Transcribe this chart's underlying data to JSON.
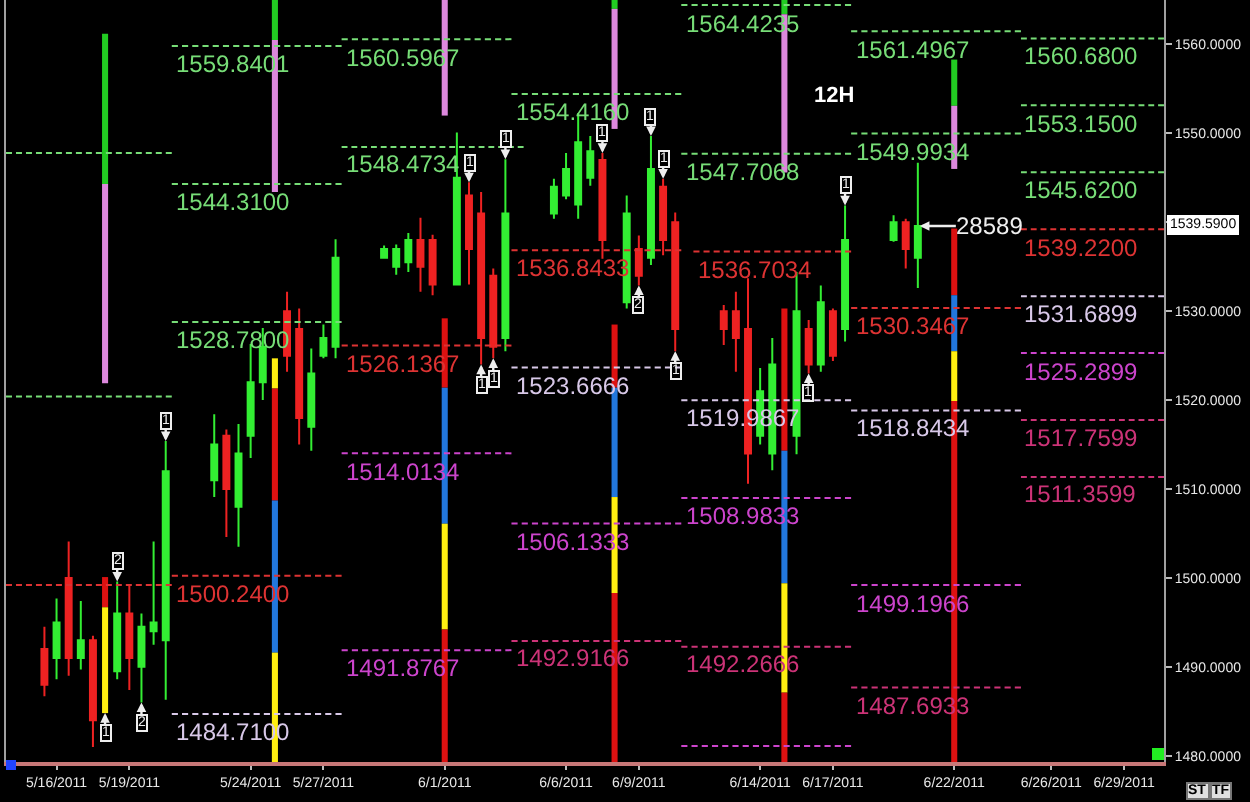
{
  "chart_data": {
    "type": "candlestick",
    "x": [
      "2011-05-15T12:00",
      "2011-05-16T00:00",
      "2011-05-16T12:00",
      "2011-05-17T00:00",
      "2011-05-17T12:00",
      "2011-05-18T12:00",
      "2011-05-19T00:00",
      "2011-05-19T12:00",
      "2011-05-20T00:00",
      "2011-05-20T12:00",
      "2011-05-22T12:00",
      "2011-05-23T00:00",
      "2011-05-23T12:00",
      "2011-05-24T00:00",
      "2011-05-24T12:00",
      "2011-05-25T12:00",
      "2011-05-26T00:00",
      "2011-05-26T12:00",
      "2011-05-27T00:00",
      "2011-05-27T12:00",
      "2011-05-29T12:00",
      "2011-05-30T00:00",
      "2011-05-30T12:00",
      "2011-05-31T00:00",
      "2011-05-31T12:00",
      "2011-06-01T12:00",
      "2011-06-02T00:00",
      "2011-06-02T12:00",
      "2011-06-03T00:00",
      "2011-06-03T12:00",
      "2011-06-05T12:00",
      "2011-06-06T00:00",
      "2011-06-06T12:00",
      "2011-06-07T00:00",
      "2011-06-07T12:00",
      "2011-06-08T12:00",
      "2011-06-09T00:00",
      "2011-06-09T12:00",
      "2011-06-10T00:00",
      "2011-06-10T12:00",
      "2011-06-12T12:00",
      "2011-06-13T00:00",
      "2011-06-13T12:00",
      "2011-06-14T00:00",
      "2011-06-14T12:00",
      "2011-06-15T12:00",
      "2011-06-16T00:00",
      "2011-06-16T12:00",
      "2011-06-17T00:00",
      "2011-06-17T12:00",
      "2011-06-19T12:00",
      "2011-06-20T00:00",
      "2011-06-20T12:00"
    ],
    "ohlc": [
      [
        1492,
        1494.5,
        1486.7,
        1488
      ],
      [
        1491,
        1497.7,
        1488.6,
        1495
      ],
      [
        1500,
        1504.1,
        1489,
        1491
      ],
      [
        1491,
        1497.4,
        1489.7,
        1493
      ],
      [
        1493,
        1493.5,
        1481,
        1484
      ],
      [
        1489.5,
        1499.6,
        1488.6,
        1496
      ],
      [
        1496,
        1499.2,
        1487.4,
        1491
      ],
      [
        1490,
        1496,
        1486,
        1494.5
      ],
      [
        1494,
        1504.1,
        1492.5,
        1495
      ],
      [
        1493,
        1515.4,
        1486.3,
        1512
      ],
      [
        1511,
        1518.4,
        1509.1,
        1515
      ],
      [
        1516,
        1516.7,
        1504.6,
        1510
      ],
      [
        1508,
        1517.3,
        1503.5,
        1514
      ],
      [
        1516,
        1526.3,
        1513.5,
        1522
      ],
      [
        1522,
        1528.1,
        1520,
        1526
      ],
      [
        1530,
        1532.2,
        1523.2,
        1525
      ],
      [
        1528,
        1530.3,
        1515,
        1518
      ],
      [
        1517,
        1525.8,
        1514.3,
        1523
      ],
      [
        1525,
        1528.5,
        1524.7,
        1527
      ],
      [
        1526,
        1538.1,
        1524.7,
        1536
      ],
      [
        1536,
        1537.4,
        1535.9,
        1537
      ],
      [
        1535,
        1537.5,
        1534.1,
        1537
      ],
      [
        1535.5,
        1538.8,
        1534.4,
        1538
      ],
      [
        1538,
        1540.5,
        1532.2,
        1535
      ],
      [
        1538,
        1538.6,
        1531.8,
        1533
      ],
      [
        1533,
        1550.1,
        1532.9,
        1545
      ],
      [
        1543,
        1544.5,
        1533,
        1537
      ],
      [
        1541,
        1543.4,
        1524,
        1527
      ],
      [
        1534,
        1534.8,
        1524.7,
        1526
      ],
      [
        1527,
        1547.1,
        1525.5,
        1541
      ],
      [
        1541,
        1544.9,
        1540.4,
        1544
      ],
      [
        1543,
        1547.8,
        1542.6,
        1546
      ],
      [
        1542,
        1552.3,
        1540.4,
        1549
      ],
      [
        1545,
        1549.7,
        1544.1,
        1548
      ],
      [
        1547,
        1547.8,
        1535.9,
        1538
      ],
      [
        1531,
        1543,
        1530.3,
        1541
      ],
      [
        1537,
        1538.5,
        1532.9,
        1534
      ],
      [
        1536,
        1549.7,
        1535.2,
        1546
      ],
      [
        1544,
        1544.9,
        1536.3,
        1538
      ],
      [
        1540,
        1541.1,
        1525.5,
        1528
      ],
      [
        1530,
        1530.7,
        1526.2,
        1528
      ],
      [
        1530,
        1532.2,
        1523.2,
        1527
      ],
      [
        1528,
        1533.7,
        1510.6,
        1514
      ],
      [
        1516,
        1523.6,
        1515,
        1521
      ],
      [
        1514,
        1527,
        1512.1,
        1524
      ],
      [
        1516,
        1534.4,
        1513.9,
        1530
      ],
      [
        1528,
        1529,
        1523,
        1524
      ],
      [
        1524,
        1532.9,
        1523.2,
        1531
      ],
      [
        1530,
        1530.3,
        1524.4,
        1525
      ],
      [
        1528,
        1541.9,
        1526.6,
        1538
      ],
      [
        1538,
        1540.8,
        1537.8,
        1540
      ],
      [
        1540,
        1540.4,
        1534.8,
        1537
      ],
      [
        1536,
        1546.7,
        1532.6,
        1539.59
      ]
    ],
    "colors": [
      "#ee2222",
      "#33ee33",
      "#ee2222",
      "#33ee33",
      "#ee2222",
      "#33ee33",
      "#ee2222",
      "#33ee33",
      "#33ee33",
      "#33ee33",
      "#33ee33",
      "#ee2222",
      "#33ee33",
      "#33ee33",
      "#33ee33",
      "#ee2222",
      "#ee2222",
      "#33ee33",
      "#33ee33",
      "#33ee33",
      "#33ee33",
      "#33ee33",
      "#33ee33",
      "#ee2222",
      "#ee2222",
      "#33ee33",
      "#ee2222",
      "#ee2222",
      "#ee2222",
      "#33ee33",
      "#33ee33",
      "#33ee33",
      "#33ee33",
      "#33ee33",
      "#ee2222",
      "#33ee33",
      "#ee2222",
      "#33ee33",
      "#ee2222",
      "#ee2222",
      "#ee2222",
      "#ee2222",
      "#ee2222",
      "#33ee33",
      "#33ee33",
      "#33ee33",
      "#ee2222",
      "#33ee33",
      "#ee2222",
      "#33ee33",
      "#33ee33",
      "#ee2222",
      "#33ee33"
    ],
    "series": [
      {
        "type": "line",
        "x": [
          "2011-05-13T22:00",
          "2011-05-20T18:00"
        ],
        "values": [
          1547.8,
          1547.8
        ],
        "color": "#77dd77"
      },
      {
        "type": "line",
        "x": [
          "2011-05-13T22:00",
          "2011-05-20T18:00"
        ],
        "values": [
          1520.4,
          1520.4
        ],
        "color": "#77dd77"
      },
      {
        "type": "line",
        "x": [
          "2011-05-13T22:00",
          "2011-05-20T18:00"
        ],
        "values": [
          1499.2,
          1499.2
        ],
        "color": "#dd3333"
      },
      {
        "type": "line",
        "x": [
          "2011-05-20T18:00",
          "2011-05-27T18:00"
        ],
        "values": [
          1559.8401,
          1559.8401
        ],
        "value_labels": [
          "1559.8401",
          null
        ],
        "color": "#77dd77"
      },
      {
        "type": "line",
        "x": [
          "2011-05-20T18:00",
          "2011-05-27T18:00"
        ],
        "values": [
          1544.31,
          1544.31
        ],
        "value_labels": [
          "1544.3100",
          null
        ],
        "color": "#77dd77"
      },
      {
        "type": "line",
        "x": [
          "2011-05-20T18:00",
          "2011-05-27T18:00"
        ],
        "values": [
          1528.78,
          1528.78
        ],
        "value_labels": [
          "1528.7800",
          null
        ],
        "color": "#77dd77"
      },
      {
        "type": "line",
        "x": [
          "2011-05-20T18:00",
          "2011-05-27T18:00"
        ],
        "values": [
          1500.24,
          1500.24
        ],
        "value_labels": [
          "1500.2400",
          null
        ],
        "color": "#dd3333"
      },
      {
        "type": "line",
        "x": [
          "2011-05-20T18:00",
          "2011-05-27T18:00"
        ],
        "values": [
          1484.71,
          1484.71
        ],
        "value_labels": [
          "1484.7100",
          null
        ],
        "color": "#d8c8e8"
      },
      {
        "type": "line",
        "x": [
          "2011-05-27T18:00",
          "2011-06-03T18:00"
        ],
        "values": [
          1560.5967,
          1560.5967
        ],
        "value_labels": [
          "1560.5967",
          null
        ],
        "color": "#77dd77"
      },
      {
        "type": "line",
        "x": [
          "2011-05-27T18:00",
          "2011-06-04T06:00"
        ],
        "values": [
          1548.4734,
          1548.4734
        ],
        "value_labels": [
          "1548.4734",
          null
        ],
        "color": "#77dd77"
      },
      {
        "type": "line",
        "x": [
          "2011-05-27T18:00",
          "2011-06-03T18:00"
        ],
        "values": [
          1526.1367,
          1526.1367
        ],
        "value_labels": [
          "1526.1367",
          null
        ],
        "color": "#dd3333"
      },
      {
        "type": "line",
        "x": [
          "2011-05-27T18:00",
          "2011-06-03T18:00"
        ],
        "values": [
          1514.0134,
          1514.0134
        ],
        "value_labels": [
          "1514.0134",
          null
        ],
        "color": "#cc44cc"
      },
      {
        "type": "line",
        "x": [
          "2011-05-27T18:00",
          "2011-06-03T18:00"
        ],
        "values": [
          1491.8767,
          1491.8767
        ],
        "value_labels": [
          "1491.8767",
          null
        ],
        "color": "#cc44cc"
      },
      {
        "type": "line",
        "x": [
          "2011-06-03T18:00",
          "2011-06-10T18:00"
        ],
        "values": [
          1554.416,
          1554.416
        ],
        "value_labels": [
          "1554.4160",
          null
        ],
        "color": "#77dd77"
      },
      {
        "type": "line",
        "x": [
          "2011-06-03T18:00",
          "2011-06-10T18:00"
        ],
        "values": [
          1536.8433,
          1536.8433
        ],
        "value_labels": [
          "1536.8433",
          null
        ],
        "color": "#dd3333"
      },
      {
        "type": "line",
        "x": [
          "2011-06-03T18:00",
          "2011-06-10T18:00"
        ],
        "values": [
          1523.6666,
          1523.6666
        ],
        "value_labels": [
          "1523.6666",
          null
        ],
        "color": "#d8c8e8"
      },
      {
        "type": "line",
        "x": [
          "2011-06-03T18:00",
          "2011-06-10T18:00"
        ],
        "values": [
          1506.1333,
          1506.1333
        ],
        "value_labels": [
          "1506.1333",
          null
        ],
        "color": "#cc44cc"
      },
      {
        "type": "line",
        "x": [
          "2011-06-03T18:00",
          "2011-06-10T18:00"
        ],
        "values": [
          1492.9166,
          1492.9166
        ],
        "value_labels": [
          "1492.9166",
          null
        ],
        "color": "#cc3377"
      },
      {
        "type": "line",
        "x": [
          "2011-06-10T18:00",
          "2011-06-17T18:00"
        ],
        "values": [
          1564.4235,
          1564.4235
        ],
        "value_labels": [
          "1564.4235",
          null
        ],
        "color": "#77dd77"
      },
      {
        "type": "line",
        "x": [
          "2011-06-10T18:00",
          "2011-06-17T18:00"
        ],
        "values": [
          1547.7068,
          1547.7068
        ],
        "value_labels": [
          "1547.7068",
          null
        ],
        "color": "#77dd77"
      },
      {
        "type": "line",
        "x": [
          "2011-06-11T06:00",
          "2011-06-17T18:00"
        ],
        "values": [
          1536.7034,
          1536.7034
        ],
        "value_labels": [
          "1536.7034",
          null
        ],
        "color": "#dd3333"
      },
      {
        "type": "line",
        "x": [
          "2011-06-10T18:00",
          "2011-06-17T18:00"
        ],
        "values": [
          1519.9867,
          1519.9867
        ],
        "value_labels": [
          "1519.9867",
          null
        ],
        "color": "#d8c8e8"
      },
      {
        "type": "line",
        "x": [
          "2011-06-10T18:00",
          "2011-06-17T18:00"
        ],
        "values": [
          1508.9833,
          1508.9833
        ],
        "value_labels": [
          "1508.9833",
          null
        ],
        "color": "#cc44cc"
      },
      {
        "type": "line",
        "x": [
          "2011-06-10T18:00",
          "2011-06-17T18:00"
        ],
        "values": [
          1492.2666,
          1492.2666
        ],
        "value_labels": [
          "1492.2666",
          null
        ],
        "color": "#cc3377"
      },
      {
        "type": "line",
        "x": [
          "2011-06-10T18:00",
          "2011-06-17T18:00"
        ],
        "values": [
          1481.1,
          1481.1
        ],
        "color": "#cc44cc"
      },
      {
        "type": "line",
        "x": [
          "2011-06-17T18:00",
          "2011-06-24T18:00"
        ],
        "values": [
          1561.4967,
          1561.4967
        ],
        "value_labels": [
          "1561.4967",
          null
        ],
        "color": "#77dd77"
      },
      {
        "type": "line",
        "x": [
          "2011-06-17T18:00",
          "2011-06-24T18:00"
        ],
        "values": [
          1549.9934,
          1549.9934
        ],
        "value_labels": [
          "1549.9934",
          null
        ],
        "color": "#77dd77"
      },
      {
        "type": "line",
        "x": [
          "2011-06-17T18:00",
          "2011-06-24T18:00"
        ],
        "values": [
          1530.3467,
          1530.3467
        ],
        "value_labels": [
          "1530.3467",
          null
        ],
        "color": "#dd3333"
      },
      {
        "type": "line",
        "x": [
          "2011-06-17T18:00",
          "2011-06-24T18:00"
        ],
        "values": [
          1518.8434,
          1518.8434
        ],
        "value_labels": [
          "1518.8434",
          null
        ],
        "color": "#d8c8e8"
      },
      {
        "type": "line",
        "x": [
          "2011-06-17T18:00",
          "2011-06-24T18:00"
        ],
        "values": [
          1499.1966,
          1499.1966
        ],
        "value_labels": [
          "1499.1966",
          null
        ],
        "color": "#cc44cc"
      },
      {
        "type": "line",
        "x": [
          "2011-06-17T18:00",
          "2011-06-24T18:00"
        ],
        "values": [
          1487.6933,
          1487.6933
        ],
        "value_labels": [
          "1487.6933",
          null
        ],
        "color": "#cc3377"
      },
      {
        "type": "line",
        "x": [
          "2011-06-24T18:00",
          "2011-06-30T15:30"
        ],
        "values": [
          1560.68,
          1560.68
        ],
        "value_labels": [
          "1560.6800",
          null
        ],
        "color": "#77dd77"
      },
      {
        "type": "line",
        "x": [
          "2011-06-24T18:00",
          "2011-06-30T15:30"
        ],
        "values": [
          1553.15,
          1553.15
        ],
        "value_labels": [
          "1553.1500",
          null
        ],
        "color": "#77dd77"
      },
      {
        "type": "line",
        "x": [
          "2011-06-24T18:00",
          "2011-06-30T15:30"
        ],
        "values": [
          1545.62,
          1545.62
        ],
        "value_labels": [
          "1545.6200",
          null
        ],
        "color": "#77dd77"
      },
      {
        "type": "line",
        "x": [
          "2011-06-24T18:00",
          "2011-06-30T15:30"
        ],
        "values": [
          1539.22,
          1539.22
        ],
        "value_labels": [
          "1539.2200",
          null
        ],
        "color": "#dd3333"
      },
      {
        "type": "line",
        "x": [
          "2011-06-24T18:00",
          "2011-06-30T15:30"
        ],
        "values": [
          1531.6899,
          1531.6899
        ],
        "value_labels": [
          "1531.6899",
          null
        ],
        "color": "#d8c8e8"
      },
      {
        "type": "line",
        "x": [
          "2011-06-24T18:00",
          "2011-06-30T15:30"
        ],
        "values": [
          1525.2899,
          1525.2899
        ],
        "value_labels": [
          "1525.2899",
          null
        ],
        "color": "#cc44cc"
      },
      {
        "type": "line",
        "x": [
          "2011-06-24T18:00",
          "2011-06-30T15:30"
        ],
        "values": [
          1517.7599,
          1517.7599
        ],
        "value_labels": [
          "1517.7599",
          null
        ],
        "color": "#cc3377"
      },
      {
        "type": "line",
        "x": [
          "2011-06-24T18:00",
          "2011-06-30T15:30"
        ],
        "values": [
          1511.3599,
          1511.3599
        ],
        "value_labels": [
          "1511.3599",
          null
        ],
        "color": "#cc3377"
      },
      {
        "type": "bar",
        "x": [
          "2011-05-18T00:00",
          "2011-05-25T00:00",
          "2011-06-08T00:00",
          "2011-06-15T00:00",
          "2011-06-22T00:00"
        ],
        "base": [
          1544.3,
          1560.5,
          1564.0,
          1563.4,
          1553.1
        ],
        "values": [
          16.9,
          4.5,
          1.0,
          1.6,
          5.2
        ],
        "color": "#22cc22"
      },
      {
        "type": "bar",
        "x": [
          "2011-05-18T00:00",
          "2011-05-25T00:00",
          "2011-06-01T00:00",
          "2011-06-08T00:00",
          "2011-06-15T00:00",
          "2011-06-22T00:00"
        ],
        "base": [
          1521.9,
          1543.4,
          1552.0,
          1550.5,
          1545.6,
          1546.0
        ],
        "values": [
          22.4,
          17.1,
          13.0,
          13.5,
          17.8,
          7.1
        ],
        "color": "#dd88dd"
      },
      {
        "type": "bar",
        "x": [
          "2011-05-18T00:00",
          "2011-05-25T00:00",
          "2011-06-01T00:00",
          "2011-06-08T00:00",
          "2011-06-15T00:00",
          "2011-06-22T00:00"
        ],
        "base": [
          1496.7,
          1521.3,
          1521.4,
          1521.4,
          1514.3,
          1531.8
        ],
        "values": [
          3.4,
          3.4,
          7.8,
          7.1,
          16.0,
          7.5
        ],
        "colors": [
          "#dd1111",
          "#ffee11",
          "#dd1111",
          "#dd1111",
          "#dd1111",
          "#dd1111"
        ]
      },
      {
        "type": "bar",
        "x": [
          "2011-05-18T00:00",
          "2011-05-25T00:00",
          "2011-06-01T00:00",
          "2011-06-08T00:00",
          "2011-06-15T00:00",
          "2011-06-22T00:00"
        ],
        "base": [
          1484.8,
          1508.7,
          1506.1,
          1509.1,
          1499.4,
          1525.5
        ],
        "values": [
          11.9,
          12.6,
          15.3,
          12.3,
          14.9,
          6.3
        ],
        "colors": [
          "#ffee11",
          "#dd1111",
          "#2277dd",
          "#2277dd",
          "#2277dd",
          "#2277dd"
        ]
      },
      {
        "type": "bar",
        "x": [
          "2011-05-25T00:00",
          "2011-06-01T00:00",
          "2011-06-08T00:00",
          "2011-06-15T00:00",
          "2011-06-22T00:00"
        ],
        "base": [
          1491.6,
          1494.2,
          1498.3,
          1487.1,
          1519.9
        ],
        "values": [
          17.1,
          11.9,
          10.8,
          12.3,
          5.6
        ],
        "colors": [
          "#2277dd",
          "#ffee11",
          "#ffee11",
          "#ffee11",
          "#ffee11"
        ]
      },
      {
        "type": "bar",
        "x": [
          "2011-05-25T00:00",
          "2011-06-01T00:00",
          "2011-06-08T00:00",
          "2011-06-15T00:00",
          "2011-06-22T00:00"
        ],
        "base": [
          1479.3,
          1479.3,
          1479.3,
          1479.3,
          1479.3
        ],
        "values": [
          12.3,
          14.9,
          19.0,
          7.8,
          40.6
        ],
        "colors": [
          "#ffee11",
          "#dd1111",
          "#dd1111",
          "#dd1111",
          "#dd1111"
        ]
      }
    ],
    "line_style": "dashed",
    "xlim": [
      "2011-05-13T22:00",
      "2011-06-30T15:30"
    ],
    "xticks": [
      {
        "value": "2011-05-16",
        "label": "5/16/2011"
      },
      {
        "value": "2011-05-19",
        "label": "5/19/2011"
      },
      {
        "value": "2011-05-24",
        "label": "5/24/2011"
      },
      {
        "value": "2011-05-27",
        "label": "5/27/2011"
      },
      {
        "value": "2011-06-01",
        "label": "6/1/2011"
      },
      {
        "value": "2011-06-06",
        "label": "6/6/2011"
      },
      {
        "value": "2011-06-09",
        "label": "6/9/2011"
      },
      {
        "value": "2011-06-14",
        "label": "6/14/2011"
      },
      {
        "value": "2011-06-17",
        "label": "6/17/2011"
      },
      {
        "value": "2011-06-22",
        "label": "6/22/2011"
      },
      {
        "value": "2011-06-26",
        "label": "6/26/2011"
      },
      {
        "value": "2011-06-29",
        "label": "6/29/2011"
      }
    ],
    "ylim": [
      1479.3,
      1565
    ],
    "yticks": [
      {
        "value": 1480,
        "label": "1480.0000"
      },
      {
        "value": 1490,
        "label": "1490.0000"
      },
      {
        "value": 1500,
        "label": "1500.0000"
      },
      {
        "value": 1510,
        "label": "1510.0000"
      },
      {
        "value": 1520,
        "label": "1520.0000"
      },
      {
        "value": 1530,
        "label": "1530.0000"
      },
      {
        "value": 1540,
        "label": null
      },
      {
        "value": 1550,
        "label": "1550.0000"
      },
      {
        "value": 1560,
        "label": "1560.0000"
      }
    ],
    "annotations": [
      "12H",
      "1539.5900",
      "ST",
      "TF",
      {
        "text": "2",
        "x": "2011-05-18T12:00",
        "y": 1499.6
      },
      {
        "text": "1",
        "x": "2011-05-18T00:00",
        "y": 1484.8
      },
      {
        "text": "2",
        "x": "2011-05-19T12:00",
        "y": 1486
      },
      {
        "text": "1",
        "x": "2011-05-20T12:00",
        "y": 1515.4
      },
      {
        "text": "1",
        "x": "2011-06-02T00:00",
        "y": 1544.5
      },
      {
        "text": "1",
        "x": "2011-06-02T12:00",
        "y": 1524
      },
      {
        "text": "1",
        "x": "2011-06-03T00:00",
        "y": 1524.7
      },
      {
        "text": "1",
        "x": "2011-06-03T12:00",
        "y": 1547.1
      },
      {
        "text": "1",
        "x": "2011-06-07T12:00",
        "y": 1547.8
      },
      {
        "text": "2",
        "x": "2011-06-09T00:00",
        "y": 1532.9
      },
      {
        "text": "1",
        "x": "2011-06-09T12:00",
        "y": 1549.7
      },
      {
        "text": "1",
        "x": "2011-06-10T00:00",
        "y": 1544.9
      },
      {
        "text": "1",
        "x": "2011-06-10T12:00",
        "y": 1525.5
      },
      {
        "text": "1",
        "x": "2011-06-16T00:00",
        "y": 1523
      },
      {
        "text": "1",
        "x": "2011-06-17T12:00",
        "y": 1541.9
      },
      {
        "text": "28589",
        "x": "2011-06-20T12:00",
        "y": 1539.59
      }
    ]
  }
}
